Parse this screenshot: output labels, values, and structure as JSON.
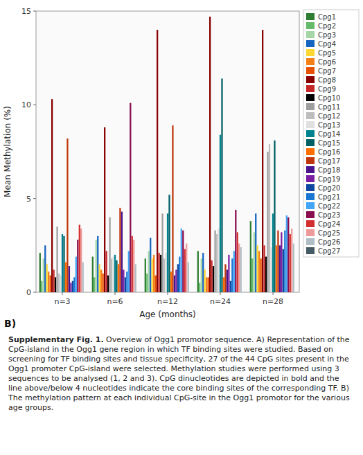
{
  "chart_data": {
    "type": "bar",
    "xlabel": "Age (months)",
    "ylabel": "Mean Methylation (%)",
    "categories": [
      "n=3",
      "n=6",
      "n=12",
      "n=24",
      "n=28"
    ],
    "ylim": [
      0,
      15
    ],
    "yticks": [
      0,
      5,
      10,
      15
    ],
    "grid": false,
    "legend": "right",
    "series": [
      {
        "name": "Cpg1",
        "color": "#2e7d32",
        "values": [
          2.1,
          1.9,
          1.8,
          2.2,
          3.8
        ]
      },
      {
        "name": "Cpg2",
        "color": "#66bb6a",
        "values": [
          0.6,
          0.8,
          1.0,
          0.5,
          1.8
        ]
      },
      {
        "name": "Cpg3",
        "color": "#a5d6a7",
        "values": [
          1.8,
          2.8,
          2.2,
          1.8,
          3.2
        ]
      },
      {
        "name": "Cpg4",
        "color": "#1565c0",
        "values": [
          2.5,
          3.0,
          2.9,
          2.1,
          4.2
        ]
      },
      {
        "name": "Cpg5",
        "color": "#fdd835",
        "values": [
          1.5,
          1.5,
          1.8,
          1.2,
          2.5
        ]
      },
      {
        "name": "Cpg6",
        "color": "#f57f17",
        "values": [
          1.1,
          1.2,
          2.0,
          0.8,
          2.2
        ]
      },
      {
        "name": "Cpg7",
        "color": "#e65100",
        "values": [
          0.9,
          1.0,
          0.9,
          0.8,
          1.8
        ]
      },
      {
        "name": "Cpg8",
        "color": "#880000",
        "values": [
          10.3,
          8.8,
          14.0,
          14.7,
          14.0
        ]
      },
      {
        "name": "Cpg9",
        "color": "#c62828",
        "values": [
          1.2,
          2.2,
          2.1,
          1.7,
          2.5
        ]
      },
      {
        "name": "Cpg10",
        "color": "#000000",
        "values": [
          0.8,
          0.9,
          2.0,
          1.4,
          1.9
        ]
      },
      {
        "name": "Cpg11",
        "color": "#9e9e9e",
        "values": [
          3.5,
          4.0,
          4.2,
          3.3,
          7.5
        ]
      },
      {
        "name": "Cpg12",
        "color": "#bdbdbd",
        "values": [
          1.0,
          1.8,
          1.8,
          3.1,
          7.9
        ]
      },
      {
        "name": "Cpg13",
        "color": "#e0e0e0",
        "values": [
          0.9,
          1.9,
          2.1,
          3.4,
          2.4
        ]
      },
      {
        "name": "Cpg14",
        "color": "#00838f",
        "values": [
          3.1,
          2.0,
          4.2,
          8.4,
          4.2
        ]
      },
      {
        "name": "Cpg15",
        "color": "#006064",
        "values": [
          3.0,
          1.7,
          5.2,
          11.4,
          8.1
        ]
      },
      {
        "name": "Cpg16",
        "color": "#ff6f00",
        "values": [
          1.6,
          1.5,
          1.1,
          0.8,
          2.5
        ]
      },
      {
        "name": "Cpg17",
        "color": "#bf360c",
        "values": [
          8.2,
          4.5,
          8.9,
          1.5,
          3.3
        ]
      },
      {
        "name": "Cpg18",
        "color": "#4a148c",
        "values": [
          1.4,
          4.3,
          0.9,
          1.2,
          2.5
        ]
      },
      {
        "name": "Cpg19",
        "color": "#7b1fa2",
        "values": [
          0.5,
          1.2,
          1.2,
          2.0,
          3.2
        ]
      },
      {
        "name": "Cpg20",
        "color": "#0d47a1",
        "values": [
          0.6,
          0.8,
          1.5,
          0.6,
          2.3
        ]
      },
      {
        "name": "Cpg21",
        "color": "#1976d2",
        "values": [
          0.8,
          1.1,
          1.9,
          1.8,
          3.3
        ]
      },
      {
        "name": "Cpg22",
        "color": "#42a5f5",
        "values": [
          1.9,
          2.2,
          3.4,
          2.2,
          4.1
        ]
      },
      {
        "name": "Cpg23",
        "color": "#880e4f",
        "values": [
          2.8,
          10.1,
          3.3,
          4.4,
          4.0
        ]
      },
      {
        "name": "Cpg24",
        "color": "#d32f2f",
        "values": [
          3.6,
          3.0,
          2.3,
          3.2,
          3.1
        ]
      },
      {
        "name": "Cpg25",
        "color": "#ef9a9a",
        "values": [
          3.4,
          2.8,
          2.6,
          2.6,
          3.4
        ]
      },
      {
        "name": "Cpg26",
        "color": "#b0bec5",
        "values": [
          1.6,
          1.5,
          1.6,
          2.4,
          2.6
        ]
      },
      {
        "name": "Cpg27",
        "color": "#455a64",
        "values": [
          0.0,
          0.0,
          0.0,
          0.0,
          0.0
        ]
      }
    ],
    "annotations": [
      "B)",
      "Supplementary Fig. 1.",
      " Overview of Ogg1 promotor sequence. A) Representation of the CpG-island in the Ogg1 gene region in which TF binding sites were studied. Based on screening for TF binding sites and tissue specificity, 27 of the 44 CpG sites present in the Ogg1 promoter CpG-island were selected. Methylation studies were performed using 3 sequences to be analysed (1, 2 and 3). CpG dinucleotides are depicted in bold and the line above/below 4 nucleotides indicate the core binding sites of the corresponding TF. B) The methylation pattern at each individual CpG-site in the Ogg1 promotor for the various age groups."
    ]
  }
}
